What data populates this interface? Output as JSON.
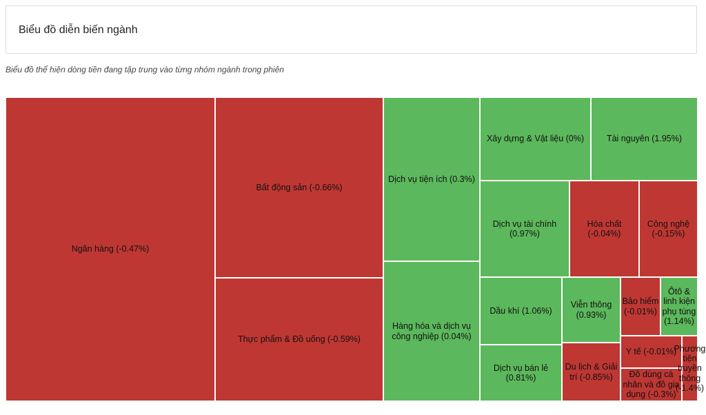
{
  "header": {
    "title": "Biểu đồ diễn biến ngành"
  },
  "subtitle": "Biểu đồ thể hiện dòng tiền đang tập trung vào từng nhóm ngành trong phiên",
  "colors": {
    "up": "#5cb85c",
    "down": "#bf3733"
  },
  "chart_data": {
    "type": "treemap",
    "items": [
      {
        "name": "Ngân hàng",
        "change": -0.47,
        "label": "Ngân hàng (-0.47%)"
      },
      {
        "name": "Bất động sản",
        "change": -0.66,
        "label": "Bất động sản (-0.66%)"
      },
      {
        "name": "Thực phẩm & Đồ uống",
        "change": -0.59,
        "label": "Thực phẩm & Đồ uống (-0.59%)"
      },
      {
        "name": "Dịch vụ tiện ích",
        "change": 0.3,
        "label": "Dịch vụ tiện ích (0.3%)"
      },
      {
        "name": "Hàng hóa và dịch vụ công nghiệp",
        "change": 0.04,
        "label": "Hàng hóa và dịch vụ công nghiệp (0.04%)"
      },
      {
        "name": "Xây dựng & Vật liệu",
        "change": 0,
        "label": "Xây dựng & Vật liệu (0%)"
      },
      {
        "name": "Tài nguyên",
        "change": 1.95,
        "label": "Tài nguyên (1.95%)"
      },
      {
        "name": "Dịch vụ tài chính",
        "change": 0.97,
        "label": "Dịch vụ tài chính (0.97%)"
      },
      {
        "name": "Hóa chất",
        "change": -0.04,
        "label": "Hóa chất (-0.04%)"
      },
      {
        "name": "Công nghệ",
        "change": -0.15,
        "label": "Công nghệ (-0.15%)"
      },
      {
        "name": "Dầu khí",
        "change": 1.06,
        "label": "Dầu khí (1.06%)"
      },
      {
        "name": "Viễn thông",
        "change": 0.93,
        "label": "Viễn thông (0.93%)"
      },
      {
        "name": "Bảo hiểm",
        "change": -0.01,
        "label": "Bảo hiểm (-0.01%)"
      },
      {
        "name": "Ôtô & linh kiện phụ tùng",
        "change": 1.14,
        "label": "Ôtô & linh kiện phụ tùng (1.14%)"
      },
      {
        "name": "Dịch vụ bán lẻ",
        "change": 0.81,
        "label": "Dịch vụ bán lẻ (0.81%)"
      },
      {
        "name": "Du lịch & Giải trí",
        "change": -0.85,
        "label": "Du lịch & Giải trí (-0.85%)"
      },
      {
        "name": "Y tế",
        "change": -0.01,
        "label": "Y tế (-0.01%)"
      },
      {
        "name": "Đồ dùng cá nhân và đồ gia dụng",
        "change": -0.3,
        "label": "Đồ dùng cá nhân và đồ gia dụng (-0.3%)"
      },
      {
        "name": "Phương tiện truyền thông",
        "change": -1.4,
        "label": "Phương tiện truyền thông (-1.4%)"
      }
    ]
  }
}
